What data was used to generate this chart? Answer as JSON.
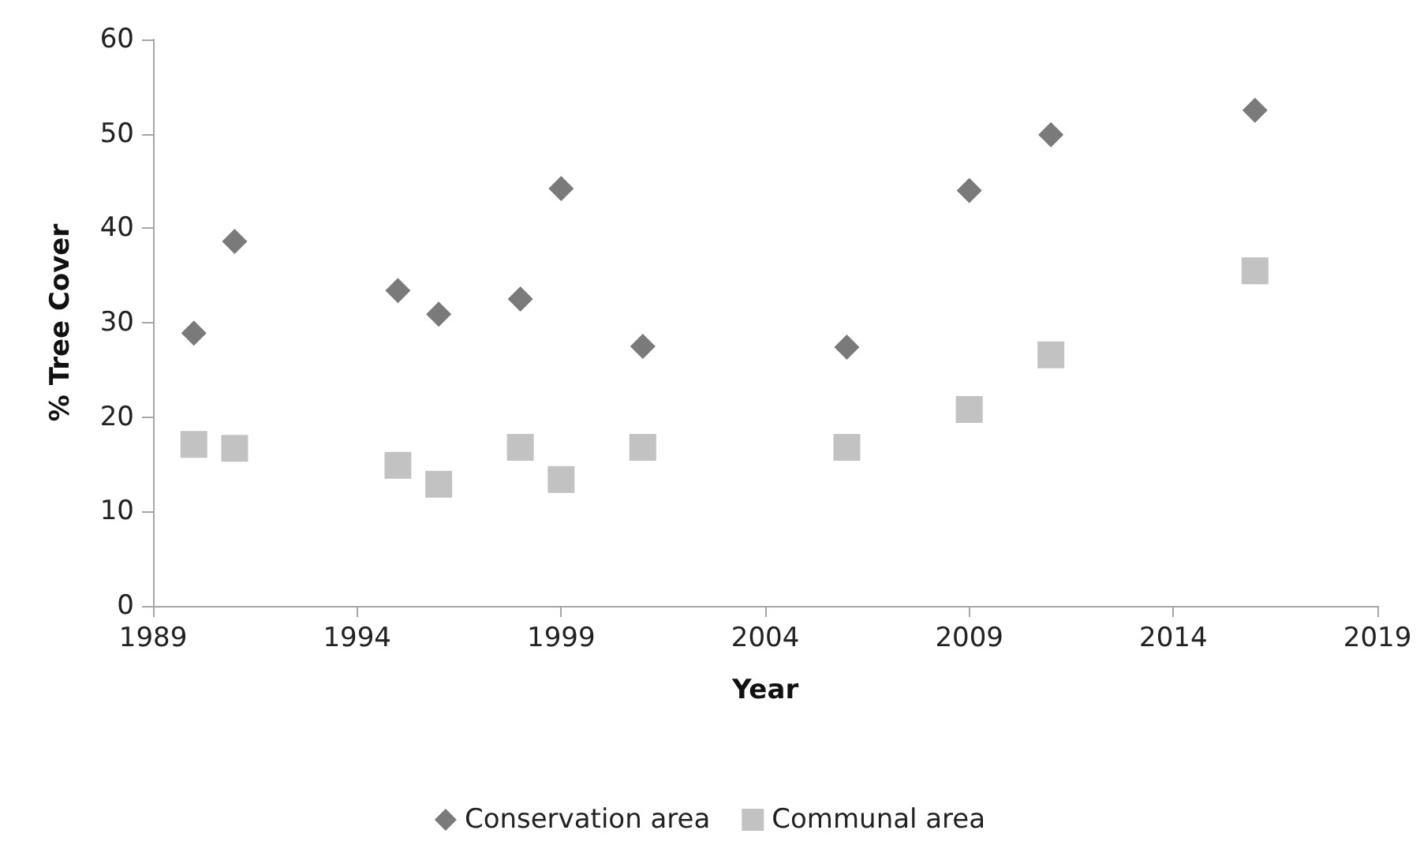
{
  "chart_data": {
    "type": "scatter",
    "xlabel": "Year",
    "ylabel": "% Tree Cover",
    "xlim": [
      1989,
      2019
    ],
    "xticks": [
      1989,
      1994,
      1999,
      2004,
      2009,
      2014,
      2019
    ],
    "ylim": [
      0,
      60
    ],
    "yticks": [
      0,
      10,
      20,
      30,
      40,
      50,
      60
    ],
    "grid": false,
    "legend": "bottom",
    "series": [
      {
        "name": "Conservation area",
        "color": "#595959",
        "marker": "diamond",
        "x": [
          1990,
          1991,
          1995,
          1996,
          1998,
          1999,
          2001,
          2006,
          2009,
          2011,
          2016
        ],
        "values": [
          28.9,
          38.6,
          33.4,
          30.9,
          32.5,
          44.2,
          27.5,
          27.4,
          44.0,
          49.9,
          52.5
        ]
      },
      {
        "name": "Communal area",
        "color": "#b3b3b3",
        "marker": "square",
        "x": [
          1990,
          1991,
          1995,
          1996,
          1998,
          1999,
          2001,
          2006,
          2009,
          2011,
          2016
        ],
        "values": [
          17.1,
          16.7,
          14.9,
          12.9,
          16.8,
          13.4,
          16.8,
          16.8,
          20.8,
          26.6,
          35.5
        ]
      }
    ]
  }
}
